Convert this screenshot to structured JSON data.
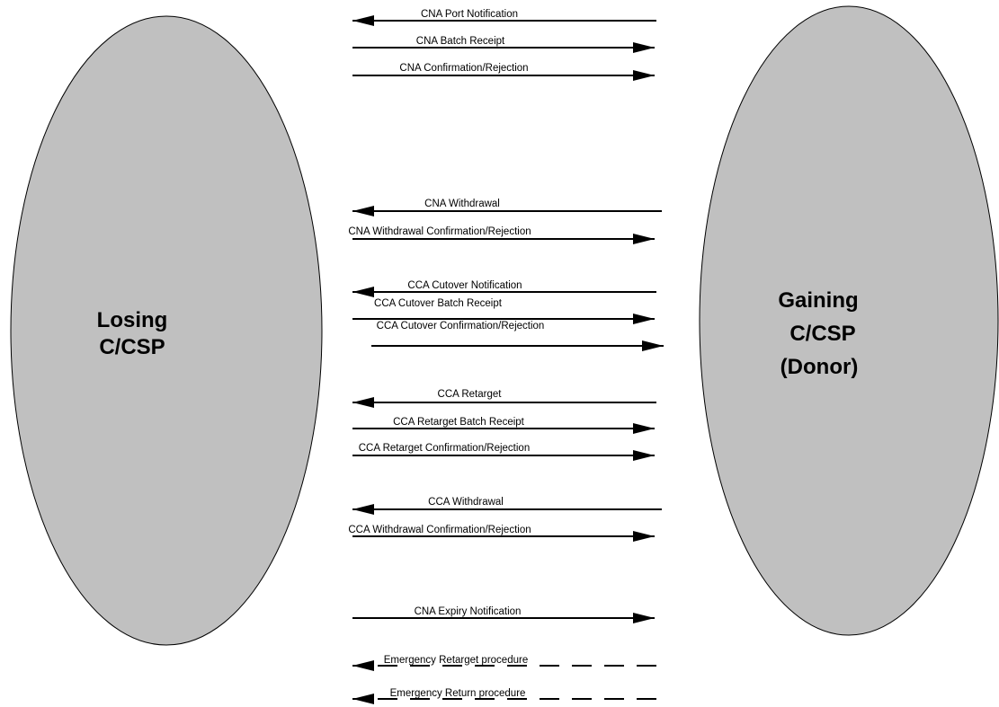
{
  "parties": {
    "left": {
      "lines": [
        "Losing",
        "C/CSP"
      ]
    },
    "right": {
      "lines": [
        "Gaining",
        "C/CSP",
        "(Donor)"
      ]
    }
  },
  "colors": {
    "ellipse_fill": "#c0c0c0",
    "ellipse_stroke": "#000000",
    "line": "#000000"
  },
  "messages": [
    {
      "id": "cna-port-notification",
      "label": "CNA Port Notification",
      "direction": "left",
      "style": "solid"
    },
    {
      "id": "cna-batch-receipt",
      "label": "CNA Batch Receipt",
      "direction": "right",
      "style": "solid"
    },
    {
      "id": "cna-confirmation-rejection",
      "label": "CNA Confirmation/Rejection",
      "direction": "right",
      "style": "solid"
    },
    {
      "id": "cna-withdrawal",
      "label": "CNA Withdrawal",
      "direction": "left",
      "style": "solid"
    },
    {
      "id": "cna-withdrawal-confirmation-rejection",
      "label": "CNA Withdrawal Confirmation/Rejection",
      "direction": "right",
      "style": "solid"
    },
    {
      "id": "cca-cutover-notification",
      "label": "CCA Cutover Notification",
      "direction": "left",
      "style": "solid"
    },
    {
      "id": "cca-cutover-batch-receipt",
      "label": "CCA Cutover Batch Receipt",
      "direction": "right",
      "style": "solid"
    },
    {
      "id": "cca-cutover-confirmation-rejection",
      "label": "CCA Cutover Confirmation/Rejection",
      "direction": "right",
      "style": "solid"
    },
    {
      "id": "cca-retarget",
      "label": "CCA Retarget",
      "direction": "left",
      "style": "solid"
    },
    {
      "id": "cca-retarget-batch-receipt",
      "label": "CCA Retarget Batch Receipt",
      "direction": "right",
      "style": "solid"
    },
    {
      "id": "cca-retarget-confirmation-rejection",
      "label": "CCA Retarget Confirmation/Rejection",
      "direction": "right",
      "style": "solid"
    },
    {
      "id": "cca-withdrawal",
      "label": "CCA Withdrawal",
      "direction": "left",
      "style": "solid"
    },
    {
      "id": "cca-withdrawal-confirmation-rejection",
      "label": "CCA Withdrawal Confirmation/Rejection",
      "direction": "right",
      "style": "solid"
    },
    {
      "id": "cna-expiry-notification",
      "label": "CNA Expiry Notification",
      "direction": "right",
      "style": "solid"
    },
    {
      "id": "emergency-retarget-procedure",
      "label": "Emergency Retarget procedure",
      "direction": "left",
      "style": "dashed"
    },
    {
      "id": "emergency-return-procedure",
      "label": "Emergency Return procedure",
      "direction": "left",
      "style": "dashed"
    }
  ]
}
